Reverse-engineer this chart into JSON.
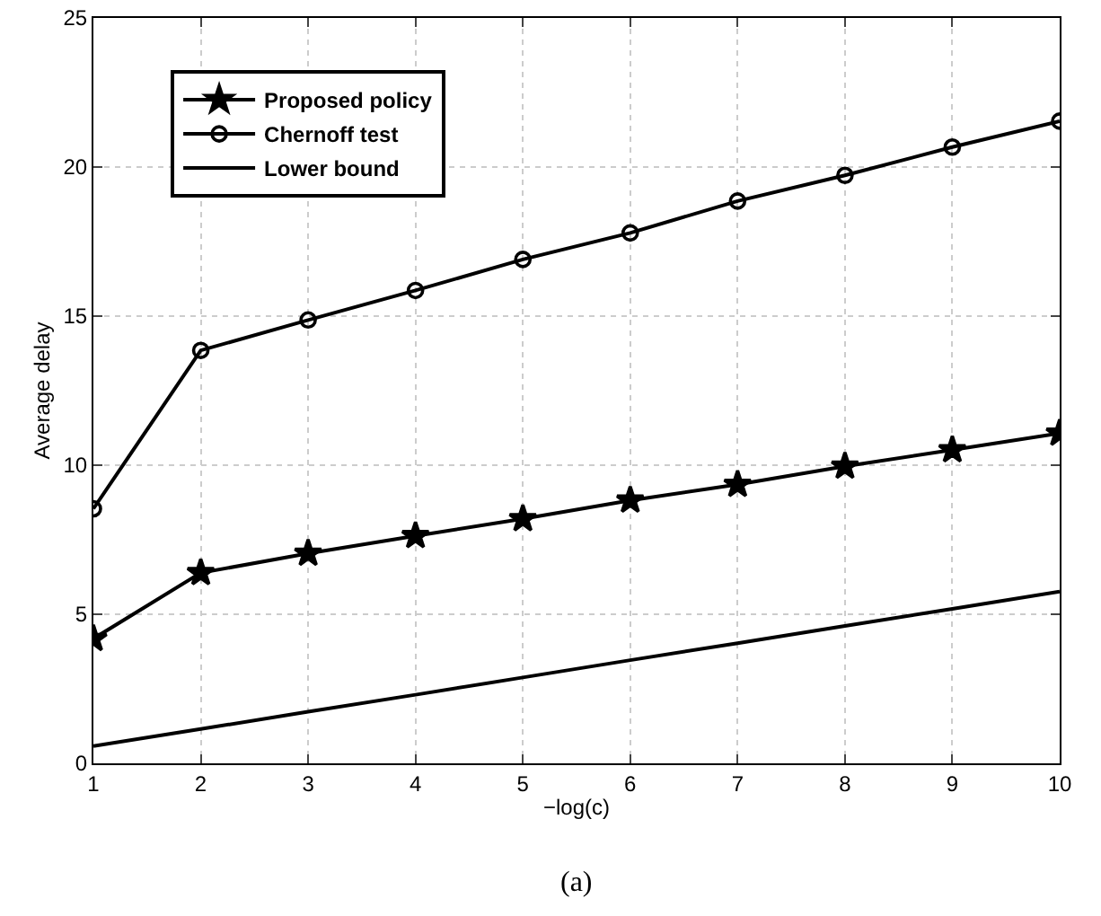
{
  "chart_data": {
    "type": "line",
    "xlabel": "−log(c)",
    "ylabel": "Average delay",
    "x": [
      1,
      2,
      3,
      4,
      5,
      6,
      7,
      8,
      9,
      10
    ],
    "series": [
      {
        "name": "Proposed policy",
        "color": "#000000",
        "marker": "star",
        "values": [
          4.18,
          6.39,
          7.04,
          7.63,
          8.2,
          8.82,
          9.35,
          9.96,
          10.51,
          11.07
        ]
      },
      {
        "name": "Chernoff test",
        "color": "#000000",
        "marker": "circle",
        "values": [
          8.54,
          13.85,
          14.87,
          15.86,
          16.9,
          17.79,
          18.86,
          19.72,
          20.67,
          21.54
        ]
      },
      {
        "name": "Lower bound",
        "color": "#000000",
        "marker": "none",
        "values": [
          0.58,
          1.15,
          1.73,
          2.3,
          2.88,
          3.46,
          4.03,
          4.61,
          5.18,
          5.76
        ]
      }
    ],
    "xlim": [
      1,
      10
    ],
    "xticks": [
      1,
      2,
      3,
      4,
      5,
      6,
      7,
      8,
      9,
      10
    ],
    "ylim": [
      0,
      25
    ],
    "yticks": [
      0,
      5,
      10,
      15,
      20,
      25
    ],
    "grid": true,
    "legend": "top left",
    "line_style": "solid",
    "annotations": [
      "(a)"
    ]
  }
}
